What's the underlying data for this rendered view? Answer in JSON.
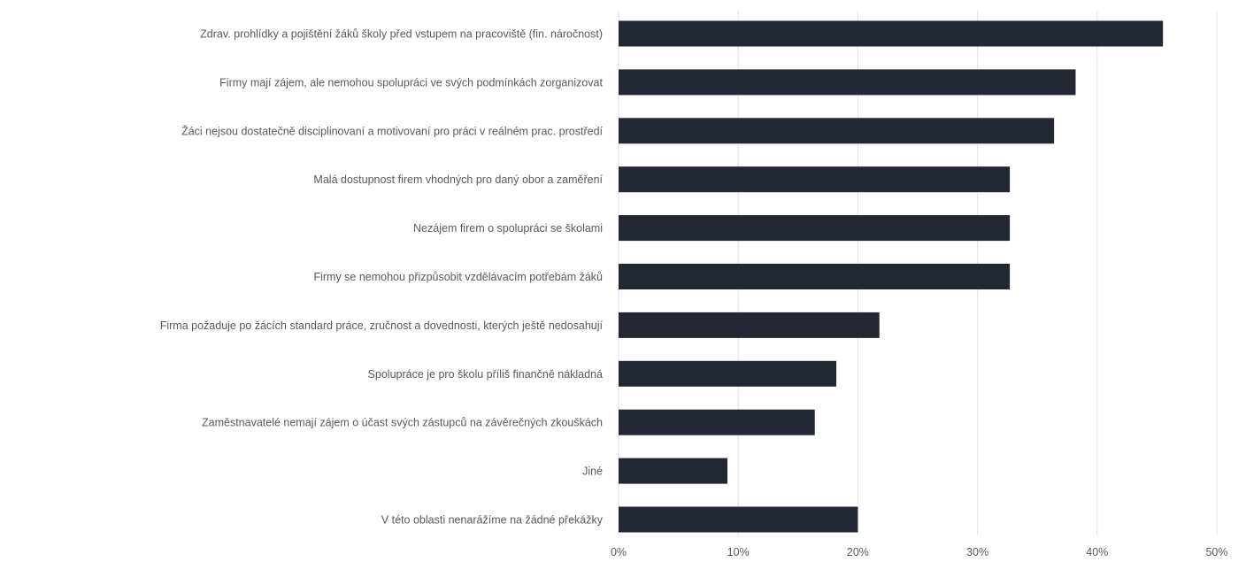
{
  "chart_data": {
    "type": "bar",
    "orientation": "horizontal",
    "categories": [
      "Zdrav. prohlídky a pojištění žáků školy před vstupem na pracoviště (fin. náročnost)",
      "Firmy mají zájem, ale nemohou spolupráci ve svých podmínkách zorganizovat",
      "Žáci nejsou dostatečně disciplinovaní a motivovaní pro práci v reálném prac. prostředí",
      "Malá dostupnost firem vhodných pro daný obor a zaměření",
      "Nezájem firem o spolupráci se školami",
      "Firmy se nemohou přizpůsobit vzdělávacím potřebám žáků",
      "Firma požaduje po žácích standard práce, zručnost a dovednosti, kterých ještě nedosahují",
      "Spolupráce je pro školu příliš finančně nákladná",
      "Zaměstnavatelé nemají zájem o účast svých zástupců na závěrečných zkouškách",
      "Jiné",
      "V této oblasti nenarážíme na žádné překážky"
    ],
    "values": [
      45.5,
      38.2,
      36.4,
      32.7,
      32.7,
      32.7,
      21.8,
      18.2,
      16.4,
      9.1,
      20.0
    ],
    "xlim": [
      0,
      50
    ],
    "xticks": [
      0,
      10,
      20,
      30,
      40,
      50
    ],
    "tick_labels": [
      "0%",
      "10%",
      "20%",
      "30%",
      "40%",
      "50%"
    ],
    "grid": true,
    "bar_color": "#222733",
    "title": "",
    "xlabel": "",
    "ylabel": ""
  }
}
